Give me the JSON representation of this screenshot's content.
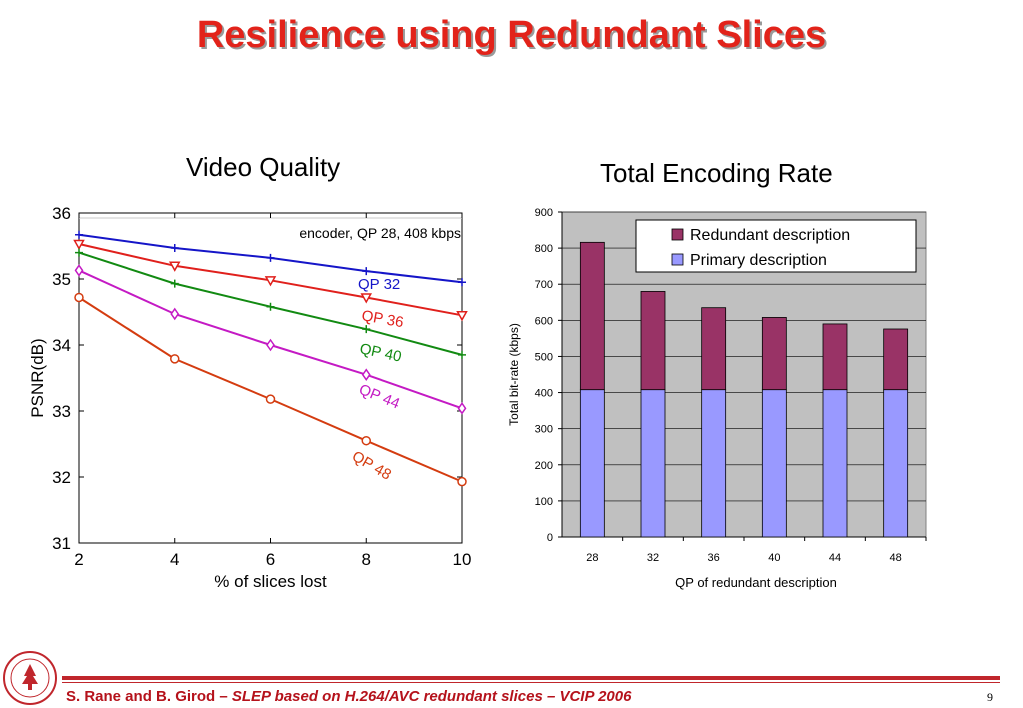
{
  "slide_title": "Resilience using Redundant Slices",
  "footer": {
    "authors": "S. Rane and B. Girod – ",
    "paper": "SLEP based on H.264/AVC redundant slices – VCIP 2006",
    "page": "9"
  },
  "chart_data": [
    {
      "type": "line",
      "title": "Video Quality",
      "xlabel": "% of slices lost",
      "ylabel": "PSNR(dB)",
      "annotation": "encoder, QP 28, 408 kbps",
      "x": [
        2,
        4,
        6,
        8,
        10
      ],
      "xticks": [
        "2",
        "4",
        "6",
        "8",
        "10"
      ],
      "yticks": [
        "31",
        "32",
        "33",
        "34",
        "35",
        "36"
      ],
      "xlim": [
        2,
        10
      ],
      "ylim": [
        31,
        36
      ],
      "series": [
        {
          "name": "QP 32",
          "color": "#1515c8",
          "marker": "plus",
          "values": [
            35.67,
            35.47,
            35.32,
            35.12,
            34.95
          ]
        },
        {
          "name": "QP 36",
          "color": "#e0201c",
          "marker": "triangle-down",
          "values": [
            35.53,
            35.2,
            34.98,
            34.72,
            34.45
          ]
        },
        {
          "name": "QP 40",
          "color": "#128a12",
          "marker": "plus",
          "values": [
            35.4,
            34.93,
            34.58,
            34.24,
            33.85
          ]
        },
        {
          "name": "QP 44",
          "color": "#c41ac4",
          "marker": "diamond",
          "values": [
            35.13,
            34.47,
            34.0,
            33.55,
            33.04
          ]
        },
        {
          "name": "QP 48",
          "color": "#d43c10",
          "marker": "circle",
          "values": [
            34.72,
            33.79,
            33.18,
            32.55,
            31.93
          ]
        }
      ]
    },
    {
      "type": "bar",
      "stacked": true,
      "title": "Total Encoding Rate",
      "xlabel": "QP of redundant description",
      "ylabel": "Total bit-rate (kbps)",
      "categories": [
        "28",
        "32",
        "36",
        "40",
        "44",
        "48"
      ],
      "ylim": [
        0,
        900
      ],
      "yticks": [
        "0",
        "100",
        "200",
        "300",
        "400",
        "500",
        "600",
        "700",
        "800",
        "900"
      ],
      "legend_position": "top-right",
      "series": [
        {
          "name": "Primary description",
          "color": "#9999ff",
          "values": [
            408,
            408,
            408,
            408,
            408,
            408
          ]
        },
        {
          "name": "Redundant description",
          "color": "#993366",
          "values": [
            408,
            272,
            227,
            200,
            182,
            168
          ]
        }
      ]
    }
  ]
}
